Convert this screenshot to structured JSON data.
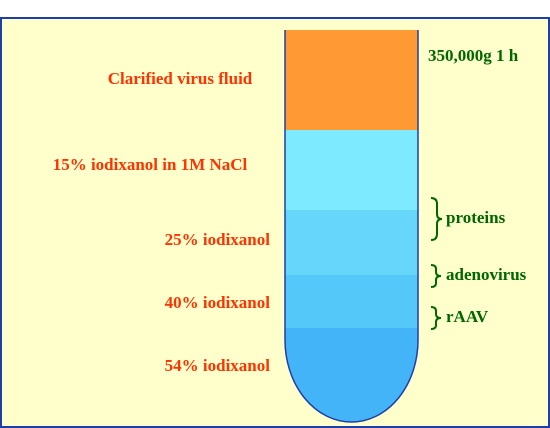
{
  "run_condition": "350,000g 1 h",
  "layers": [
    {
      "label": "Clarified virus fluid"
    },
    {
      "label": "15% iodixanol in 1M NaCl"
    },
    {
      "label": "25% iodixanol"
    },
    {
      "label": "40% iodixanol"
    },
    {
      "label": "54% iodixanol"
    }
  ],
  "bands": [
    {
      "label": "proteins"
    },
    {
      "label": "adenovirus"
    },
    {
      "label": "rAAV"
    }
  ]
}
